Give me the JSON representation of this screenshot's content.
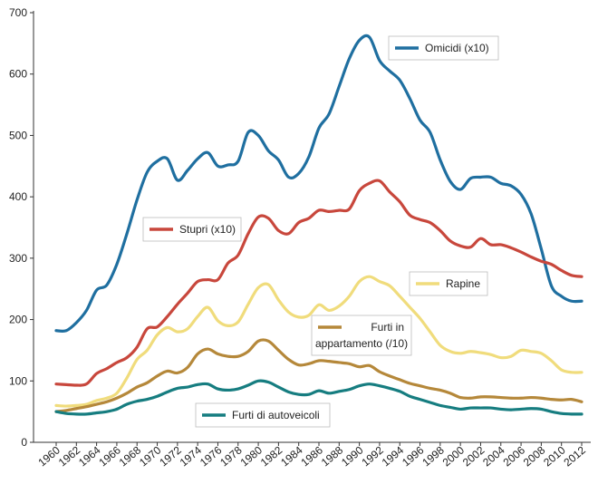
{
  "chart_data": {
    "type": "line",
    "title": "",
    "xlabel": "",
    "ylabel": "",
    "xlim": [
      1960,
      2012
    ],
    "ylim": [
      0,
      700
    ],
    "y_ticks": [
      0,
      100,
      200,
      300,
      400,
      500,
      600,
      700
    ],
    "x_ticks": [
      1960,
      1962,
      1964,
      1966,
      1968,
      1970,
      1972,
      1974,
      1976,
      1978,
      1980,
      1982,
      1984,
      1986,
      1988,
      1990,
      1992,
      1994,
      1996,
      1998,
      2000,
      2002,
      2004,
      2006,
      2008,
      2010,
      2012
    ],
    "grid": false,
    "series": [
      {
        "name": "Omicidi (x10)",
        "color": "#1f6fa0",
        "x": [
          1960,
          1961,
          1962,
          1963,
          1964,
          1965,
          1966,
          1967,
          1968,
          1969,
          1970,
          1971,
          1972,
          1973,
          1974,
          1975,
          1976,
          1977,
          1978,
          1979,
          1980,
          1981,
          1982,
          1983,
          1984,
          1985,
          1986,
          1987,
          1988,
          1989,
          1990,
          1991,
          1992,
          1993,
          1994,
          1995,
          1996,
          1997,
          1998,
          1999,
          2000,
          2001,
          2002,
          2003,
          2004,
          2005,
          2006,
          2007,
          2008,
          2009,
          2010,
          2011,
          2012
        ],
        "y": [
          182,
          182,
          195,
          215,
          248,
          256,
          290,
          340,
          395,
          440,
          458,
          462,
          427,
          443,
          462,
          472,
          450,
          452,
          458,
          505,
          500,
          475,
          460,
          432,
          438,
          465,
          512,
          535,
          580,
          625,
          655,
          660,
          622,
          605,
          590,
          560,
          525,
          505,
          460,
          425,
          412,
          430,
          432,
          432,
          422,
          418,
          404,
          372,
          315,
          255,
          238,
          230,
          230
        ]
      },
      {
        "name": "Stupri (x10)",
        "color": "#c8473c",
        "x": [
          1960,
          1961,
          1962,
          1963,
          1964,
          1965,
          1966,
          1967,
          1968,
          1969,
          1970,
          1971,
          1972,
          1973,
          1974,
          1975,
          1976,
          1977,
          1978,
          1979,
          1980,
          1981,
          1982,
          1983,
          1984,
          1985,
          1986,
          1987,
          1988,
          1989,
          1990,
          1991,
          1992,
          1993,
          1994,
          1995,
          1996,
          1997,
          1998,
          1999,
          2000,
          2001,
          2002,
          2003,
          2004,
          2005,
          2006,
          2007,
          2008,
          2009,
          2010,
          2011,
          2012
        ],
        "y": [
          95,
          94,
          93,
          95,
          112,
          120,
          130,
          138,
          155,
          185,
          188,
          205,
          225,
          243,
          262,
          265,
          265,
          292,
          305,
          340,
          367,
          365,
          345,
          340,
          358,
          365,
          378,
          376,
          378,
          380,
          410,
          422,
          426,
          408,
          392,
          370,
          363,
          358,
          345,
          328,
          320,
          318,
          332,
          322,
          322,
          317,
          310,
          302,
          295,
          290,
          280,
          272,
          270
        ]
      },
      {
        "name": "Rapine",
        "color": "#f0dc7c",
        "x": [
          1960,
          1961,
          1962,
          1963,
          1964,
          1965,
          1966,
          1967,
          1968,
          1969,
          1970,
          1971,
          1972,
          1973,
          1974,
          1975,
          1976,
          1977,
          1978,
          1979,
          1980,
          1981,
          1982,
          1983,
          1984,
          1985,
          1986,
          1987,
          1988,
          1989,
          1990,
          1991,
          1992,
          1993,
          1994,
          1995,
          1996,
          1997,
          1998,
          1999,
          2000,
          2001,
          2002,
          2003,
          2004,
          2005,
          2006,
          2007,
          2008,
          2009,
          2010,
          2011,
          2012
        ],
        "y": [
          60,
          59,
          60,
          62,
          68,
          72,
          80,
          105,
          135,
          150,
          175,
          187,
          180,
          185,
          205,
          220,
          198,
          190,
          196,
          225,
          252,
          257,
          232,
          212,
          204,
          207,
          224,
          215,
          222,
          238,
          262,
          270,
          262,
          255,
          238,
          220,
          202,
          180,
          158,
          148,
          145,
          148,
          146,
          143,
          138,
          140,
          150,
          148,
          145,
          133,
          118,
          114,
          114
        ]
      },
      {
        "name": "Furti in appartamento (/10)",
        "color": "#b5883a",
        "x": [
          1960,
          1961,
          1962,
          1963,
          1964,
          1965,
          1966,
          1967,
          1968,
          1969,
          1970,
          1971,
          1972,
          1973,
          1974,
          1975,
          1976,
          1977,
          1978,
          1979,
          1980,
          1981,
          1982,
          1983,
          1984,
          1985,
          1986,
          1987,
          1988,
          1989,
          1990,
          1991,
          1992,
          1993,
          1994,
          1995,
          1996,
          1997,
          1998,
          1999,
          2000,
          2001,
          2002,
          2003,
          2004,
          2005,
          2006,
          2007,
          2008,
          2009,
          2010,
          2011,
          2012
        ],
        "y": [
          50,
          52,
          55,
          58,
          62,
          66,
          72,
          80,
          90,
          97,
          108,
          116,
          113,
          122,
          144,
          152,
          144,
          140,
          140,
          148,
          165,
          165,
          150,
          135,
          126,
          128,
          133,
          132,
          130,
          128,
          123,
          125,
          115,
          108,
          102,
          96,
          92,
          88,
          85,
          80,
          73,
          72,
          74,
          74,
          73,
          72,
          72,
          73,
          72,
          70,
          69,
          70,
          66
        ]
      },
      {
        "name": "Furti di autoveicoli",
        "color": "#167d80",
        "x": [
          1960,
          1961,
          1962,
          1963,
          1964,
          1965,
          1966,
          1967,
          1968,
          1969,
          1970,
          1971,
          1972,
          1973,
          1974,
          1975,
          1976,
          1977,
          1978,
          1979,
          1980,
          1981,
          1982,
          1983,
          1984,
          1985,
          1986,
          1987,
          1988,
          1989,
          1990,
          1991,
          1992,
          1993,
          1994,
          1995,
          1996,
          1997,
          1998,
          1999,
          2000,
          2001,
          2002,
          2003,
          2004,
          2005,
          2006,
          2007,
          2008,
          2009,
          2010,
          2011,
          2012
        ],
        "y": [
          50,
          47,
          46,
          46,
          48,
          50,
          54,
          62,
          67,
          70,
          75,
          82,
          88,
          90,
          94,
          95,
          87,
          85,
          87,
          93,
          100,
          98,
          90,
          82,
          78,
          78,
          84,
          80,
          83,
          86,
          92,
          95,
          92,
          88,
          83,
          75,
          70,
          65,
          60,
          57,
          54,
          56,
          56,
          56,
          54,
          53,
          54,
          55,
          54,
          50,
          47,
          46,
          46
        ]
      }
    ],
    "legend": [
      {
        "series": 0,
        "label": "Omicidi (x10)",
        "placement": "top-center"
      },
      {
        "series": 1,
        "label": "Stupri (x10)",
        "placement": "upper-left"
      },
      {
        "series": 2,
        "label": "Rapine",
        "placement": "center-right"
      },
      {
        "series": 3,
        "label": "Furti in\nappartamento (/10)",
        "placement": "center"
      },
      {
        "series": 4,
        "label": "Furti di autoveicoli",
        "placement": "bottom-left"
      }
    ]
  }
}
